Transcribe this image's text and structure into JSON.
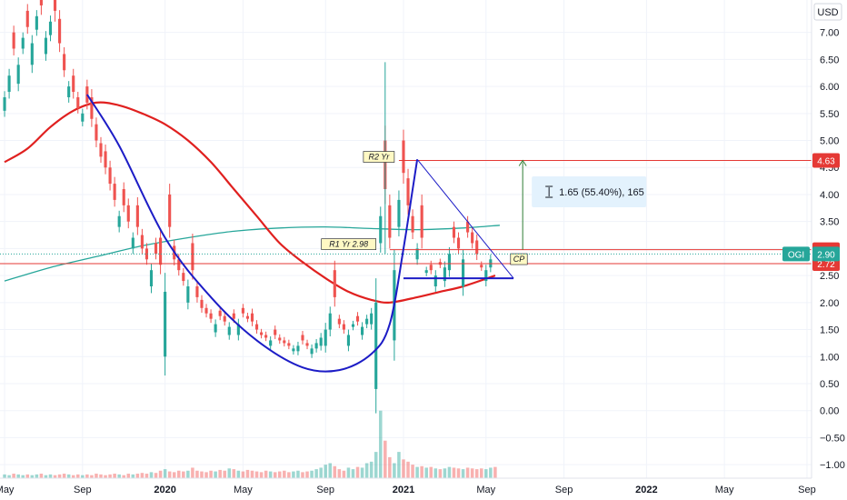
{
  "currency_label": "USD",
  "colors": {
    "up": "#26a69a",
    "down": "#ef5350",
    "ma_red": "#e0201f",
    "ma_teal": "#26a69a",
    "pattern": "#1c1cc6",
    "r_line": "#e53935",
    "measure": "#2e7d32",
    "price_tag": "#26a69a"
  },
  "chart_data": {
    "type": "candlestick",
    "ticker": "OGI",
    "y_ticks": [
      "7.00",
      "6.50",
      "6.00",
      "5.50",
      "5.00",
      "4.50",
      "4.00",
      "3.50",
      "3.00",
      "2.50",
      "2.00",
      "1.50",
      "1.00",
      "0.50",
      "0.00",
      "−0.50",
      "−1.00"
    ],
    "ylim": [
      -1.25,
      7.6
    ],
    "x_labels": [
      {
        "label": "May",
        "bold": false
      },
      {
        "label": "Sep",
        "bold": false
      },
      {
        "label": "2020",
        "bold": true
      },
      {
        "label": "May",
        "bold": false
      },
      {
        "label": "Sep",
        "bold": false
      },
      {
        "label": "2021",
        "bold": true
      },
      {
        "label": "May",
        "bold": false
      },
      {
        "label": "Sep",
        "bold": false
      },
      {
        "label": "2022",
        "bold": true
      },
      {
        "label": "May",
        "bold": false
      },
      {
        "label": "Sep",
        "bold": false
      }
    ],
    "x_label_index": [
      0,
      17,
      35,
      52,
      70,
      87,
      105,
      122,
      140,
      157,
      175
    ],
    "x_range": [
      -1,
      176
    ],
    "candles_close": [
      5.8,
      6.2,
      6.7,
      6.4,
      6.9,
      7.1,
      6.8,
      7.3,
      7.5,
      6.9,
      7.2,
      7.4,
      6.8,
      6.3,
      6.0,
      5.9,
      5.6,
      5.5,
      5.7,
      5.4,
      5.0,
      4.7,
      4.5,
      4.2,
      3.9,
      3.6,
      3.8,
      3.5,
      3.2,
      3.4,
      3.0,
      2.8,
      2.6,
      2.9,
      2.7,
      2.2,
      3.4,
      2.8,
      2.6,
      2.4,
      2.3,
      2.6,
      2.1,
      1.9,
      1.8,
      1.7,
      1.6,
      1.75,
      1.65,
      1.55,
      1.7,
      1.6,
      1.8,
      1.7,
      1.65,
      1.5,
      1.4,
      1.35,
      1.3,
      1.4,
      1.3,
      1.25,
      1.2,
      1.15,
      1.2,
      1.3,
      1.2,
      1.15,
      1.25,
      1.35,
      1.5,
      1.8,
      2.1,
      1.6,
      1.5,
      1.4,
      1.6,
      1.65,
      1.55,
      1.7,
      1.8,
      2.0,
      3.6,
      4.1,
      3.2,
      2.6,
      3.9,
      4.4,
      3.8,
      3.3,
      3.0,
      3.2,
      2.6,
      2.6,
      2.5,
      2.7,
      2.65,
      2.9,
      3.2,
      3.0,
      2.8,
      3.3,
      3.1,
      2.9,
      2.65,
      2.6,
      2.8,
      2.9
    ],
    "candles_change": [
      0.25,
      0.3,
      -0.3,
      0.35,
      0.2,
      -0.3,
      0.4,
      0.25,
      -0.5,
      0.3,
      0.25,
      -0.6,
      -0.45,
      -0.3,
      0.2,
      -0.3,
      -0.2,
      0.15,
      -0.3,
      -0.4,
      -0.3,
      -0.25,
      -0.3,
      -0.3,
      -0.3,
      0.2,
      -0.3,
      -0.3,
      0.2,
      -0.4,
      -0.25,
      -0.2,
      0.3,
      -0.2,
      -0.5,
      1.2,
      -0.6,
      -0.25,
      -0.2,
      -0.15,
      0.3,
      -0.5,
      -0.2,
      -0.15,
      -0.1,
      -0.1,
      0.15,
      -0.1,
      -0.1,
      0.15,
      -0.1,
      0.2,
      -0.1,
      -0.05,
      -0.15,
      -0.1,
      -0.05,
      -0.05,
      0.1,
      -0.1,
      -0.05,
      -0.05,
      -0.05,
      0.05,
      0.1,
      -0.1,
      -0.05,
      0.1,
      0.1,
      0.15,
      0.3,
      0.3,
      -0.5,
      -0.1,
      -0.1,
      0.2,
      0.05,
      -0.1,
      0.15,
      0.1,
      0.2,
      1.6,
      0.5,
      -0.9,
      -0.6,
      1.3,
      0.5,
      -0.6,
      -0.5,
      -0.3,
      0.2,
      -0.6,
      0.05,
      -0.1,
      0.2,
      -0.05,
      0.25,
      0.3,
      -0.2,
      -0.2,
      0.5,
      -0.2,
      -0.2,
      -0.25,
      -0.05,
      0.2,
      0.15
    ],
    "volume": [
      0.05,
      0.04,
      0.06,
      0.05,
      0.04,
      0.05,
      0.04,
      0.05,
      0.06,
      0.04,
      0.05,
      0.04,
      0.05,
      0.06,
      0.05,
      0.04,
      0.05,
      0.04,
      0.05,
      0.04,
      0.06,
      0.05,
      0.04,
      0.05,
      0.06,
      0.05,
      0.04,
      0.06,
      0.05,
      0.06,
      0.07,
      0.06,
      0.08,
      0.07,
      0.1,
      0.12,
      0.09,
      0.08,
      0.1,
      0.09,
      0.1,
      0.14,
      0.1,
      0.09,
      0.08,
      0.1,
      0.09,
      0.11,
      0.1,
      0.13,
      0.12,
      0.1,
      0.09,
      0.11,
      0.1,
      0.09,
      0.08,
      0.1,
      0.09,
      0.08,
      0.09,
      0.1,
      0.08,
      0.09,
      0.1,
      0.08,
      0.09,
      0.1,
      0.12,
      0.14,
      0.18,
      0.2,
      0.16,
      0.12,
      0.1,
      0.14,
      0.12,
      0.15,
      0.14,
      0.2,
      0.22,
      0.35,
      0.9,
      0.5,
      0.28,
      0.2,
      0.35,
      0.25,
      0.22,
      0.18,
      0.15,
      0.16,
      0.14,
      0.15,
      0.13,
      0.12,
      0.13,
      0.15,
      0.14,
      0.13,
      0.12,
      0.14,
      0.13,
      0.12,
      0.13,
      0.12,
      0.14,
      0.15
    ],
    "spike_wick": {
      "index": 83,
      "high": 6.45,
      "low": 2.9
    },
    "ma_red": [
      [
        0,
        4.6
      ],
      [
        5,
        4.85
      ],
      [
        10,
        5.25
      ],
      [
        15,
        5.55
      ],
      [
        20,
        5.7
      ],
      [
        25,
        5.65
      ],
      [
        30,
        5.5
      ],
      [
        35,
        5.3
      ],
      [
        40,
        5.0
      ],
      [
        45,
        4.6
      ],
      [
        50,
        4.1
      ],
      [
        55,
        3.6
      ],
      [
        60,
        3.1
      ],
      [
        65,
        2.75
      ],
      [
        70,
        2.45
      ],
      [
        75,
        2.2
      ],
      [
        80,
        2.05
      ],
      [
        84,
        2.0
      ],
      [
        90,
        2.1
      ],
      [
        95,
        2.2
      ],
      [
        100,
        2.3
      ],
      [
        107,
        2.5
      ]
    ],
    "ma_teal": [
      [
        0,
        2.4
      ],
      [
        10,
        2.65
      ],
      [
        20,
        2.85
      ],
      [
        30,
        3.05
      ],
      [
        40,
        3.2
      ],
      [
        50,
        3.32
      ],
      [
        60,
        3.38
      ],
      [
        70,
        3.4
      ],
      [
        80,
        3.37
      ],
      [
        90,
        3.35
      ],
      [
        100,
        3.38
      ],
      [
        108,
        3.43
      ]
    ],
    "cup_curve": [
      [
        18,
        5.85
      ],
      [
        25,
        4.9
      ],
      [
        35,
        3.2
      ],
      [
        45,
        2.1
      ],
      [
        55,
        1.3
      ],
      [
        65,
        0.8
      ],
      [
        73,
        0.75
      ],
      [
        80,
        1.05
      ],
      [
        84,
        1.6
      ],
      [
        87,
        3.0
      ],
      [
        89,
        4.1
      ],
      [
        90,
        4.65
      ]
    ],
    "triangle_lines": [
      {
        "from": [
          90,
          4.65
        ],
        "to": [
          111,
          2.45
        ]
      },
      {
        "from": [
          90,
          4.65
        ],
        "to": [
          90,
          4.65
        ]
      },
      {
        "from": [
          87,
          2.45
        ],
        "to": [
          111,
          2.45
        ]
      }
    ],
    "levels": [
      {
        "value": 4.63,
        "label": "4.63",
        "kind": "r2",
        "tag": "R2 Yr"
      },
      {
        "value": 2.98,
        "label": "2.98",
        "kind": "r1",
        "tag": "R1 Yr 2.98"
      },
      {
        "value": 2.72,
        "label": "2.72",
        "kind": "cp",
        "tag": "CP"
      }
    ],
    "last_price": {
      "value": 2.9,
      "label": "2.90",
      "ticker": "OGI"
    },
    "measure": {
      "from": 2.98,
      "to": 4.63,
      "x_index": 113,
      "text": "1.65 (55.40%), 165"
    }
  }
}
